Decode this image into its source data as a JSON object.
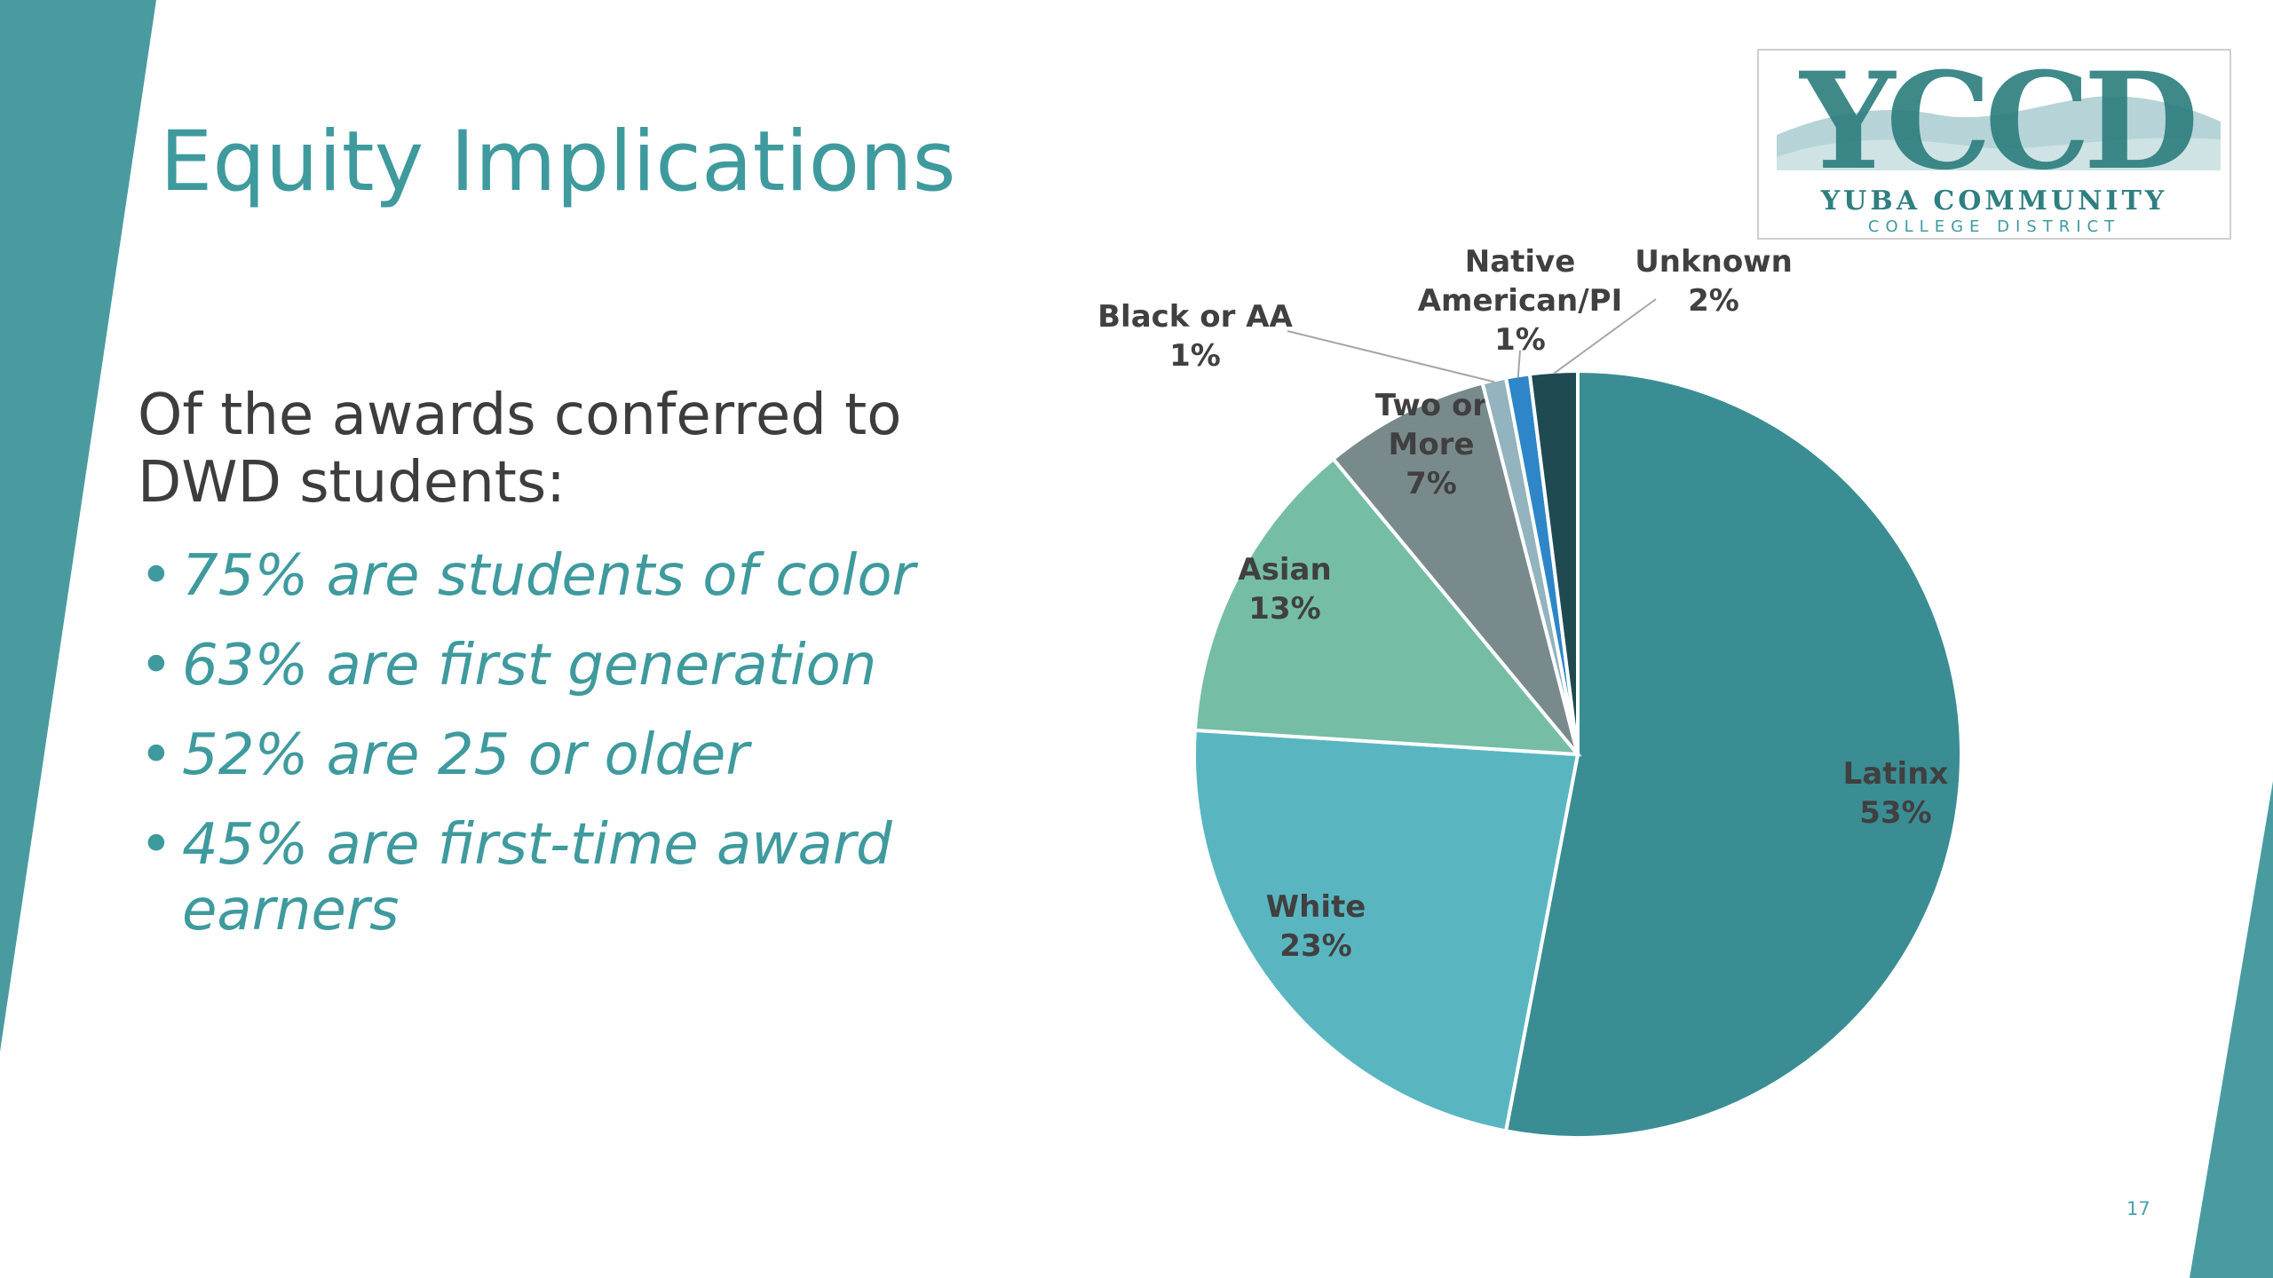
{
  "slide": {
    "title": "Equity Implications",
    "intro": "Of the awards conferred to DWD students:",
    "bullets": [
      "75% are students of color",
      "63% are first generation",
      "52% are 25 or older",
      "45% are first-time award earners"
    ],
    "page_number": "17"
  },
  "logo": {
    "letters": "YCCD",
    "name": "YUBA COMMUNITY",
    "subtitle": "COLLEGE DISTRICT"
  },
  "colors": {
    "accent": "#3f9a9e",
    "text": "#3d3d3d"
  },
  "chart_data": {
    "type": "pie",
    "title": "",
    "start_angle_deg": 0,
    "direction": "clockwise",
    "slices": [
      {
        "label": "Latinx",
        "value": 53,
        "display": "53%",
        "color": "#3a8d93"
      },
      {
        "label": "White",
        "value": 23,
        "display": "23%",
        "color": "#59b6c1"
      },
      {
        "label": "Asian",
        "value": 13,
        "display": "13%",
        "color": "#76bda6"
      },
      {
        "label": "Two or More",
        "value": 7,
        "display": "7%",
        "color": "#798a8d"
      },
      {
        "label": "Black or AA",
        "value": 1,
        "display": "1%",
        "color": "#93b3be"
      },
      {
        "label": "Native American/PI",
        "value": 1,
        "display": "1%",
        "color": "#2e86c8"
      },
      {
        "label": "Unknown",
        "value": 2,
        "display": "2%",
        "color": "#1f4a52"
      }
    ]
  }
}
